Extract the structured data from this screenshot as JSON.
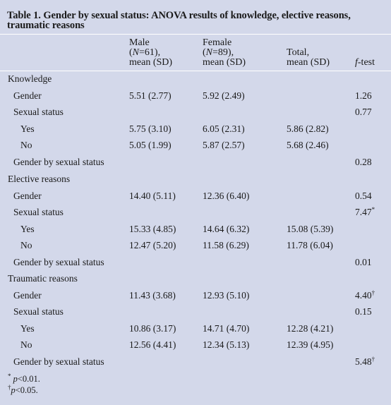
{
  "caption": "Table 1. Gender by sexual status: ANOVA results of knowledge, elective reasons, traumatic reasons",
  "columns": {
    "male": {
      "line1": "Male",
      "n_open": "(",
      "n_var": "N",
      "n_val": "=61),",
      "line3": "mean (SD)"
    },
    "female": {
      "line1": "Female",
      "n_open": "(",
      "n_var": "N",
      "n_val": "=89),",
      "line3": "mean (SD)"
    },
    "total": {
      "line1": "Total,",
      "line2": "mean (SD)"
    },
    "ftest": {
      "italic": "f",
      "rest": "-test"
    }
  },
  "rows": [
    {
      "label": "Knowledge",
      "male": "",
      "female": "",
      "total": "",
      "f": "",
      "sup": ""
    },
    {
      "label": "Gender",
      "male": "5.51 (2.77)",
      "female": "5.92 (2.49)",
      "total": "",
      "f": "1.26",
      "sup": ""
    },
    {
      "label": "Sexual status",
      "male": "",
      "female": "",
      "total": "",
      "f": "0.77",
      "sup": ""
    },
    {
      "label": "Yes",
      "male": "5.75 (3.10)",
      "female": "6.05 (2.31)",
      "total": "5.86 (2.82)",
      "f": "",
      "sup": ""
    },
    {
      "label": "No",
      "male": "5.05 (1.99)",
      "female": "5.87 (2.57)",
      "total": "5.68 (2.46)",
      "f": "",
      "sup": ""
    },
    {
      "label": "Gender by sexual status",
      "male": "",
      "female": "",
      "total": "",
      "f": "0.28",
      "sup": ""
    },
    {
      "label": "Elective reasons",
      "male": "",
      "female": "",
      "total": "",
      "f": "",
      "sup": ""
    },
    {
      "label": "Gender",
      "male": "14.40 (5.11)",
      "female": "12.36 (6.40)",
      "total": "",
      "f": "0.54",
      "sup": ""
    },
    {
      "label": "Sexual status",
      "male": "",
      "female": "",
      "total": "",
      "f": "7.47",
      "sup": "*"
    },
    {
      "label": "Yes",
      "male": "15.33 (4.85)",
      "female": "14.64 (6.32)",
      "total": "15.08 (5.39)",
      "f": "",
      "sup": ""
    },
    {
      "label": "No",
      "male": "12.47 (5.20)",
      "female": "11.58 (6.29)",
      "total": "11.78 (6.04)",
      "f": "",
      "sup": ""
    },
    {
      "label": "Gender by sexual status",
      "male": "",
      "female": "",
      "total": "",
      "f": "0.01",
      "sup": ""
    },
    {
      "label": "Traumatic reasons",
      "male": "",
      "female": "",
      "total": "",
      "f": "",
      "sup": ""
    },
    {
      "label": "Gender",
      "male": "11.43 (3.68)",
      "female": "12.93 (5.10)",
      "total": "",
      "f": "4.40",
      "sup": "†"
    },
    {
      "label": "Sexual status",
      "male": "",
      "female": "",
      "total": "",
      "f": "0.15",
      "sup": ""
    },
    {
      "label": "Yes",
      "male": "10.86 (3.17)",
      "female": "14.71 (4.70)",
      "total": "12.28 (4.21)",
      "f": "",
      "sup": ""
    },
    {
      "label": "No",
      "male": "12.56 (4.41)",
      "female": "12.34 (5.13)",
      "total": "12.39 (4.95)",
      "f": "",
      "sup": ""
    },
    {
      "label": "Gender by sexual status",
      "male": "",
      "female": "",
      "total": "",
      "f": "5.48",
      "sup": "†"
    }
  ],
  "footnotes": [
    {
      "mark": "*",
      "var": "p",
      "rest": "<0.01."
    },
    {
      "mark": "†",
      "var": "p",
      "rest": "<0.05."
    }
  ]
}
